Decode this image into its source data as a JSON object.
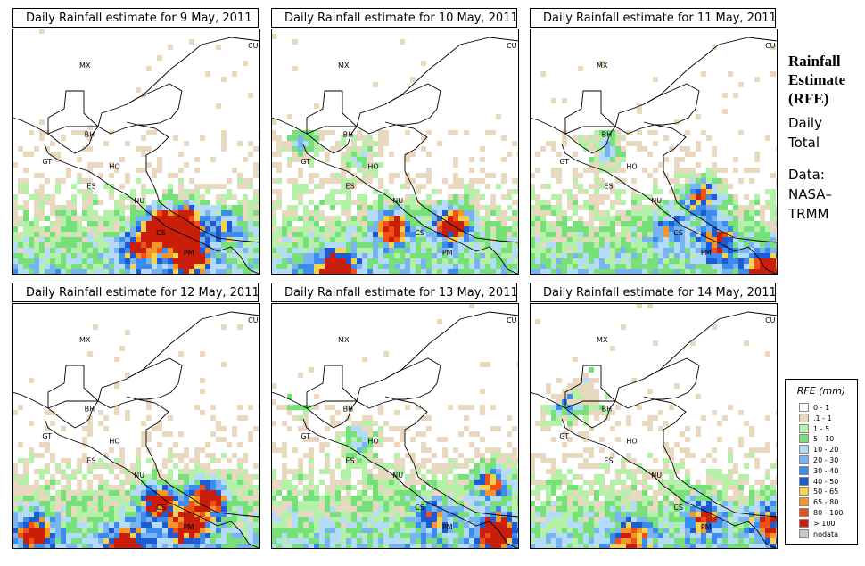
{
  "panels": [
    {
      "title": "Daily Rainfall estimate for  9 May, 2011",
      "seed": 11,
      "hot": [
        [
          0.68,
          0.78,
          1.0
        ],
        [
          0.58,
          0.8,
          0.8
        ],
        [
          0.7,
          0.92,
          0.8
        ],
        [
          0.5,
          0.88,
          0.6
        ],
        [
          0.85,
          0.8,
          0.5
        ]
      ]
    },
    {
      "title": "Daily Rainfall estimate for  10 May, 2011",
      "seed": 23,
      "hot": [
        [
          0.72,
          0.78,
          0.9
        ],
        [
          0.48,
          0.8,
          0.8
        ],
        [
          0.25,
          0.97,
          0.9
        ],
        [
          0.12,
          0.45,
          0.5
        ],
        [
          0.35,
          0.52,
          0.4
        ]
      ]
    },
    {
      "title": "Daily Rainfall estimate for  11 May, 2011",
      "seed": 37,
      "hot": [
        [
          0.68,
          0.67,
          0.8
        ],
        [
          0.55,
          0.8,
          0.5
        ],
        [
          0.95,
          0.97,
          0.9
        ],
        [
          0.3,
          0.48,
          0.5
        ],
        [
          0.75,
          0.85,
          0.6
        ]
      ]
    },
    {
      "title": "Daily Rainfall estimate for  12 May, 2011",
      "seed": 41,
      "hot": [
        [
          0.78,
          0.78,
          0.9
        ],
        [
          0.58,
          0.8,
          0.8
        ],
        [
          0.7,
          0.9,
          0.7
        ],
        [
          0.08,
          0.92,
          0.7
        ],
        [
          0.45,
          0.97,
          0.7
        ]
      ]
    },
    {
      "title": "Daily Rainfall estimate for  13 May, 2011",
      "seed": 53,
      "hot": [
        [
          0.88,
          0.72,
          0.7
        ],
        [
          0.9,
          0.92,
          0.9
        ],
        [
          0.35,
          0.55,
          0.5
        ],
        [
          0.65,
          0.85,
          0.5
        ],
        [
          0.12,
          0.37,
          0.4
        ]
      ]
    },
    {
      "title": "Daily Rainfall estimate for  14 May, 2011",
      "seed": 67,
      "hot": [
        [
          0.22,
          0.35,
          0.8
        ],
        [
          0.4,
          0.94,
          0.6
        ],
        [
          0.7,
          0.86,
          0.6
        ],
        [
          0.12,
          0.4,
          0.5
        ],
        [
          0.95,
          0.88,
          0.6
        ]
      ]
    }
  ],
  "country_labels": [
    {
      "text": "CU"
    },
    {
      "text": "MX"
    },
    {
      "text": "BH"
    },
    {
      "text": "GT"
    },
    {
      "text": "HO"
    },
    {
      "text": "ES"
    },
    {
      "text": "NU"
    },
    {
      "text": "CS"
    },
    {
      "text": "PM"
    }
  ],
  "side": {
    "heading": [
      "Rainfall",
      "Estimate",
      "(RFE)"
    ],
    "line1": [
      "Daily",
      "Total"
    ],
    "line2": [
      "Data:",
      "NASA–",
      "TRMM"
    ]
  },
  "legend": {
    "title": "RFE (mm)",
    "items": [
      {
        "label": "0 - 1",
        "color": "#ffffff"
      },
      {
        "label": ".1 - 1",
        "color": "#e8d8c0"
      },
      {
        "label": "1 - 5",
        "color": "#b4f0a8"
      },
      {
        "label": "5 - 10",
        "color": "#78e07a"
      },
      {
        "label": "10 - 20",
        "color": "#b4dcf8"
      },
      {
        "label": "20 - 30",
        "color": "#78b4f0"
      },
      {
        "label": "30 - 40",
        "color": "#3c8cf0"
      },
      {
        "label": "40 - 50",
        "color": "#1e5ad2"
      },
      {
        "label": "50 - 65",
        "color": "#f5d250"
      },
      {
        "label": "65 - 80",
        "color": "#f59628"
      },
      {
        "label": "80 - 100",
        "color": "#f05014"
      },
      {
        "label": "> 100",
        "color": "#c81e0a"
      },
      {
        "label": "nodata",
        "color": "#c8c8c8"
      }
    ]
  }
}
